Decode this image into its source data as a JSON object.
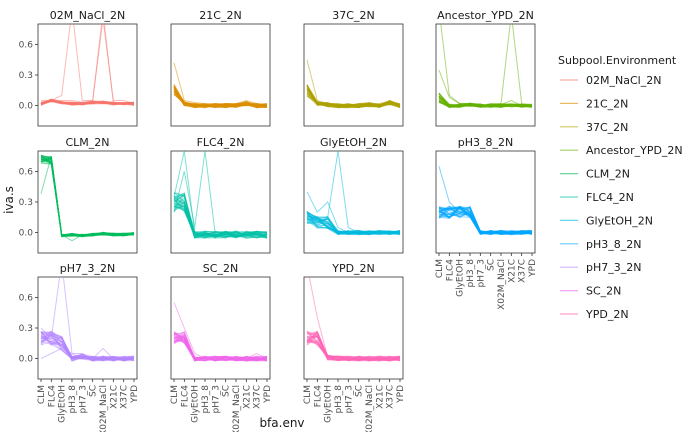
{
  "chart_data": {
    "type": "line",
    "xlabel": "bfa.env",
    "ylabel": "iva.s",
    "x_categories": [
      "CLM",
      "FLC4",
      "GlyEtOH",
      "pH3_8",
      "pH7_3",
      "SC",
      "X02M_NaCl",
      "X21C",
      "X37C",
      "YPD"
    ],
    "y_ticks": [
      0.0,
      0.3,
      0.6
    ],
    "y_tick_labels": [
      "0.0",
      "0.3",
      "0.6"
    ],
    "ylim": [
      -0.2,
      0.8
    ],
    "legend": {
      "title": "Subpool.Environment",
      "placement": "right"
    },
    "facets": [
      {
        "name": "02M_NaCl_2N",
        "color": "#F8766D",
        "base": [
          0.02,
          0.05,
          0.03,
          0.02,
          0.02,
          0.03,
          0.03,
          0.02,
          0.02,
          0.02
        ],
        "spread": 0.04,
        "outliers": [
          [
            0.0,
            0.05,
            0.1,
            0.95,
            0.05,
            0.05,
            0.85,
            0.05,
            0.05,
            0.02
          ],
          [
            0.05,
            0.05,
            0.05,
            0.05,
            0.03,
            0.05,
            0.92,
            0.03,
            0.02,
            0.0
          ]
        ]
      },
      {
        "name": "21C_2N",
        "color": "#DB8E00",
        "base": [
          0.15,
          0.02,
          0.0,
          0.0,
          0.0,
          0.0,
          0.0,
          0.02,
          0.0,
          0.0
        ],
        "spread": 0.06,
        "outliers": [
          [
            0.42,
            0.05,
            0.03,
            0.02,
            0.0,
            0.02,
            0.02,
            0.05,
            0.02,
            0.0
          ]
        ]
      },
      {
        "name": "37C_2N",
        "color": "#AEA200",
        "base": [
          0.15,
          0.02,
          0.01,
          0.0,
          0.0,
          0.0,
          0.01,
          0.0,
          0.03,
          0.0
        ],
        "spread": 0.06,
        "outliers": [
          [
            0.45,
            0.05,
            0.02,
            0.02,
            0.0,
            0.01,
            0.02,
            0.0,
            0.05,
            0.0
          ]
        ]
      },
      {
        "name": "Ancestor_YPD_2N",
        "color": "#64B200",
        "base": [
          0.08,
          0.0,
          0.0,
          0.01,
          0.0,
          0.0,
          0.0,
          0.0,
          0.0,
          0.0
        ],
        "spread": 0.05,
        "outliers": [
          [
            0.95,
            0.1,
            0.02,
            0.02,
            0.0,
            0.02,
            0.02,
            0.9,
            0.02,
            0.0
          ],
          [
            0.35,
            0.08,
            0.02,
            0.02,
            0.0,
            0.01,
            0.01,
            0.05,
            0.0,
            0.0
          ]
        ]
      },
      {
        "name": "CLM_2N",
        "color": "#00BD5C",
        "base": [
          0.72,
          0.71,
          -0.03,
          -0.02,
          -0.03,
          -0.02,
          -0.01,
          -0.02,
          -0.02,
          -0.01
        ],
        "spread": 0.04,
        "outliers": [
          [
            0.38,
            0.75,
            -0.02,
            -0.08,
            -0.02,
            -0.02,
            -0.01,
            -0.02,
            -0.02,
            -0.01
          ]
        ]
      },
      {
        "name": "FLC4_2N",
        "color": "#00C1A7",
        "base": [
          0.3,
          0.3,
          -0.02,
          -0.02,
          -0.02,
          -0.02,
          -0.02,
          -0.02,
          -0.02,
          -0.02
        ],
        "spread": 0.1,
        "outliers": [
          [
            0.2,
            0.6,
            0.05,
            0.8,
            -0.02,
            -0.02,
            0.0,
            -0.02,
            -0.02,
            -0.02
          ],
          [
            0.35,
            0.8,
            0.0,
            0.0,
            -0.02,
            -0.02,
            -0.02,
            -0.02,
            -0.02,
            -0.02
          ]
        ]
      },
      {
        "name": "GlyEtOH_2N",
        "color": "#00BADE",
        "base": [
          0.15,
          0.1,
          0.1,
          0.0,
          0.0,
          0.0,
          0.0,
          0.0,
          0.0,
          0.0
        ],
        "spread": 0.06,
        "outliers": [
          [
            0.2,
            0.15,
            0.15,
            0.8,
            0.05,
            0.0,
            0.02,
            0.0,
            0.0,
            0.0
          ],
          [
            0.4,
            0.2,
            0.3,
            0.05,
            0.0,
            0.0,
            0.0,
            0.0,
            0.0,
            0.0
          ]
        ]
      },
      {
        "name": "pH3_8_2N",
        "color": "#00A6FF",
        "base": [
          0.2,
          0.2,
          0.2,
          0.2,
          0.0,
          0.0,
          0.0,
          0.0,
          0.0,
          0.0
        ],
        "spread": 0.06,
        "outliers": [
          [
            0.65,
            0.3,
            0.2,
            0.2,
            0.0,
            0.0,
            0.0,
            0.0,
            0.0,
            0.0
          ]
        ]
      },
      {
        "name": "pH7_3_2N",
        "color": "#B385FF",
        "base": [
          0.2,
          0.2,
          0.15,
          0.0,
          0.02,
          0.0,
          0.0,
          0.0,
          0.0,
          0.0
        ],
        "spread": 0.07,
        "outliers": [
          [
            0.3,
            0.2,
            0.95,
            0.05,
            0.05,
            0.0,
            0.0,
            0.0,
            0.0,
            0.0
          ],
          [
            0.0,
            0.05,
            0.1,
            0.05,
            0.0,
            0.0,
            0.1,
            0.0,
            0.0,
            0.0
          ]
        ]
      },
      {
        "name": "SC_2N",
        "color": "#EF67EB",
        "base": [
          0.2,
          0.2,
          0.0,
          0.0,
          0.0,
          0.0,
          0.0,
          0.0,
          0.0,
          0.0
        ],
        "spread": 0.07,
        "outliers": [
          [
            0.55,
            0.3,
            0.05,
            0.0,
            0.0,
            0.0,
            0.0,
            0.0,
            0.05,
            0.0
          ]
        ]
      },
      {
        "name": "YPD_2N",
        "color": "#FF63B6",
        "base": [
          0.2,
          0.2,
          0.01,
          0.0,
          0.0,
          0.0,
          0.0,
          0.0,
          0.0,
          0.0
        ],
        "spread": 0.07,
        "outliers": [
          [
            0.92,
            0.4,
            0.02,
            0.0,
            0.0,
            0.0,
            0.0,
            0.0,
            0.0,
            0.0
          ]
        ]
      }
    ]
  }
}
